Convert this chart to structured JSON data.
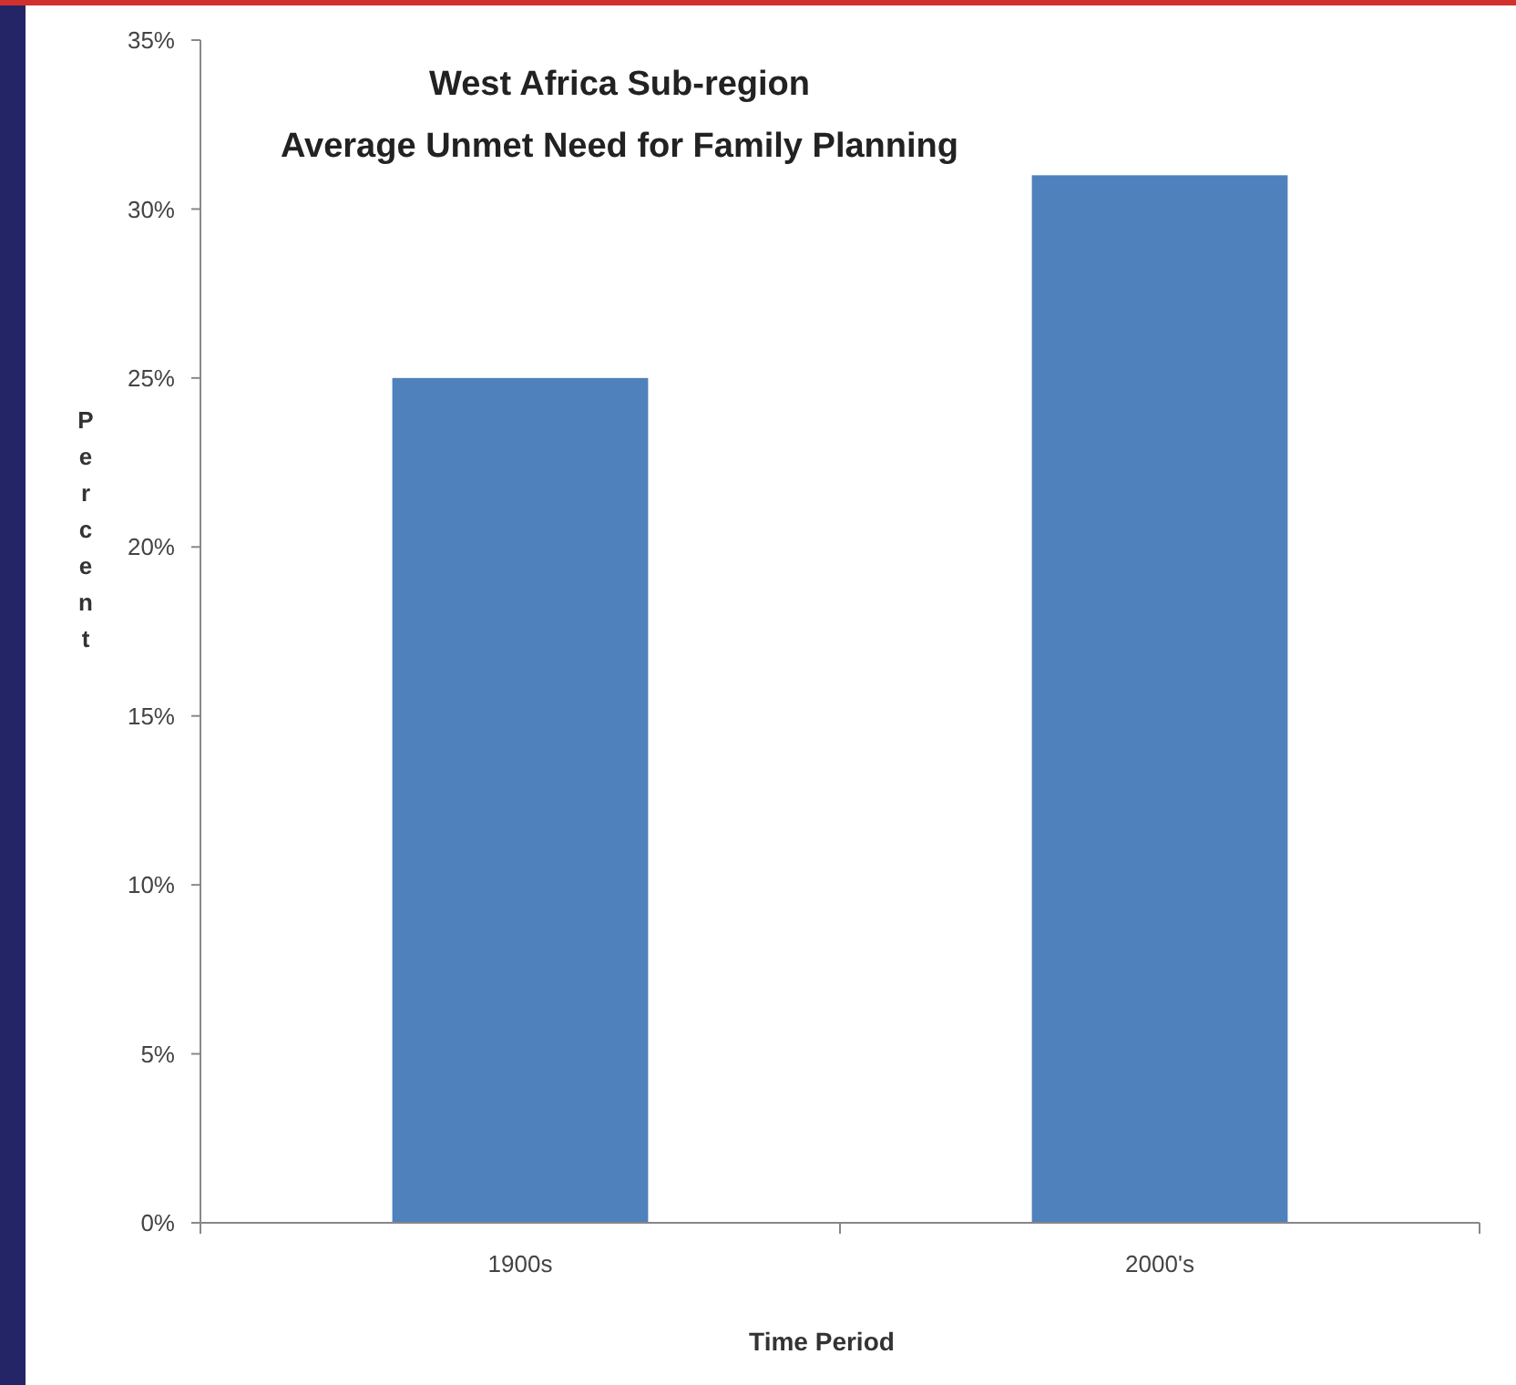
{
  "chart_data": {
    "type": "bar",
    "title": "West Africa Sub-region\nAverage Unmet Need for Family Planning",
    "xlabel": "Time Period",
    "ylabel": "Percent",
    "categories": [
      "1900s",
      "2000's"
    ],
    "values": [
      25,
      31
    ],
    "color": "#4f81bd",
    "ylim": [
      0,
      35
    ],
    "yticks": [
      {
        "value": 0,
        "label": "0%"
      },
      {
        "value": 5,
        "label": "5%"
      },
      {
        "value": 10,
        "label": "10%"
      },
      {
        "value": 15,
        "label": "15%"
      },
      {
        "value": 20,
        "label": "20%"
      },
      {
        "value": 25,
        "label": "25%"
      },
      {
        "value": 30,
        "label": "30%"
      },
      {
        "value": 35,
        "label": "35%"
      }
    ],
    "grid": false
  }
}
